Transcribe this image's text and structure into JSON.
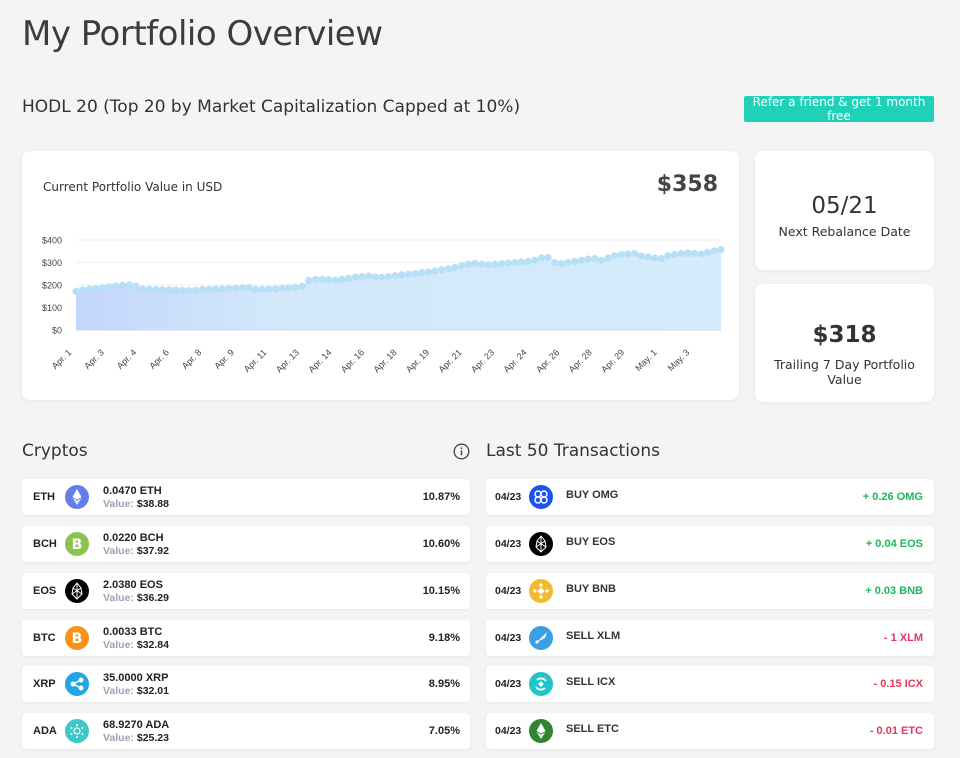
{
  "page": {
    "title": "My Portfolio Overview"
  },
  "header": {
    "subtitle": "HODL 20 (Top 20 by Market Capitalization Capped at 10%)",
    "refer_button": "Refer a friend & get 1 month free"
  },
  "colors": {
    "accent": "#1fd1b6",
    "positive": "#1cb85c",
    "negative": "#e5365f",
    "chart_fill": "#d4ecfb",
    "chart_dot": "#b7e0f7"
  },
  "chart_card": {
    "label": "Current Portfolio Value in USD",
    "value": "$358"
  },
  "chart_data": {
    "type": "area",
    "title": "Current Portfolio Value in USD",
    "y_ticks": [
      "$400",
      "$300",
      "$200",
      "$100",
      "$0"
    ],
    "ylim": [
      0,
      400
    ],
    "x_tick_labels": [
      "Apr. 1",
      "Apr. 3",
      "Apr. 4",
      "Apr. 6",
      "Apr. 8",
      "Apr. 9",
      "Apr. 11",
      "Apr. 13",
      "Apr. 14",
      "Apr. 16",
      "Apr. 18",
      "Apr. 19",
      "Apr. 21",
      "Apr. 23",
      "Apr. 24",
      "Apr. 26",
      "Apr. 28",
      "Apr. 29",
      "May. 1",
      "May. 3"
    ],
    "values": [
      172,
      178,
      183,
      185,
      188,
      192,
      196,
      198,
      200,
      195,
      182,
      181,
      180,
      179,
      178,
      177,
      176,
      175,
      177,
      180,
      181,
      182,
      183,
      184,
      186,
      187,
      188,
      181,
      180,
      182,
      183,
      185,
      187,
      190,
      195,
      220,
      225,
      226,
      224,
      222,
      225,
      230,
      235,
      238,
      240,
      236,
      234,
      238,
      242,
      245,
      248,
      250,
      255,
      258,
      262,
      268,
      272,
      278,
      285,
      292,
      296,
      292,
      290,
      292,
      295,
      298,
      300,
      302,
      305,
      310,
      320,
      322,
      300,
      295,
      300,
      305,
      310,
      315,
      318,
      310,
      320,
      330,
      335,
      338,
      340,
      330,
      325,
      320,
      318,
      330,
      335,
      340,
      342,
      340,
      338,
      345,
      352,
      358
    ],
    "grid": true
  },
  "stats": [
    {
      "value": "05/21",
      "label": "Next Rebalance Date"
    },
    {
      "value": "$318",
      "label": "Trailing 7 Day Portfolio Value"
    }
  ],
  "cryptos": {
    "title": "Cryptos",
    "value_label": "Value:",
    "items": [
      {
        "symbol": "ETH",
        "amount": "0.0470 ETH",
        "value": "$38.88",
        "percent": "10.87%",
        "icon": "ethereum-icon",
        "color": "#627eea"
      },
      {
        "symbol": "BCH",
        "amount": "0.0220 BCH",
        "value": "$37.92",
        "percent": "10.60%",
        "icon": "bitcoin-cash-icon",
        "color": "#8dc351"
      },
      {
        "symbol": "EOS",
        "amount": "2.0380 EOS",
        "value": "$36.29",
        "percent": "10.15%",
        "icon": "eos-icon",
        "color": "#000000"
      },
      {
        "symbol": "BTC",
        "amount": "0.0033 BTC",
        "value": "$32.84",
        "percent": "9.18%",
        "icon": "bitcoin-icon",
        "color": "#f7931a"
      },
      {
        "symbol": "XRP",
        "amount": "35.0000 XRP",
        "value": "$32.01",
        "percent": "8.95%",
        "icon": "ripple-icon",
        "color": "#23a5e6"
      },
      {
        "symbol": "ADA",
        "amount": "68.9270 ADA",
        "value": "$25.23",
        "percent": "7.05%",
        "icon": "cardano-icon",
        "color": "#3cc8c8"
      }
    ]
  },
  "transactions": {
    "title": "Last 50 Transactions",
    "items": [
      {
        "date": "04/23",
        "action": "BUY OMG",
        "amount": "+ 0.26 OMG",
        "direction": "positive",
        "icon": "omisego-icon",
        "color": "#1a53f0"
      },
      {
        "date": "04/23",
        "action": "BUY EOS",
        "amount": "+ 0.04 EOS",
        "direction": "positive",
        "icon": "eos-icon",
        "color": "#000000"
      },
      {
        "date": "04/23",
        "action": "BUY BNB",
        "amount": "+ 0.03 BNB",
        "direction": "positive",
        "icon": "binance-icon",
        "color": "#f3ba2f"
      },
      {
        "date": "04/23",
        "action": "SELL XLM",
        "amount": "- 1 XLM",
        "direction": "negative",
        "icon": "stellar-icon",
        "color": "#3a9fe5"
      },
      {
        "date": "04/23",
        "action": "SELL ICX",
        "amount": "- 0.15 ICX",
        "direction": "negative",
        "icon": "icon-icx-icon",
        "color": "#1fc5c9"
      },
      {
        "date": "04/23",
        "action": "SELL ETC",
        "amount": "- 0.01 ETC",
        "direction": "negative",
        "icon": "ethereum-classic-icon",
        "color": "#328332"
      }
    ]
  }
}
